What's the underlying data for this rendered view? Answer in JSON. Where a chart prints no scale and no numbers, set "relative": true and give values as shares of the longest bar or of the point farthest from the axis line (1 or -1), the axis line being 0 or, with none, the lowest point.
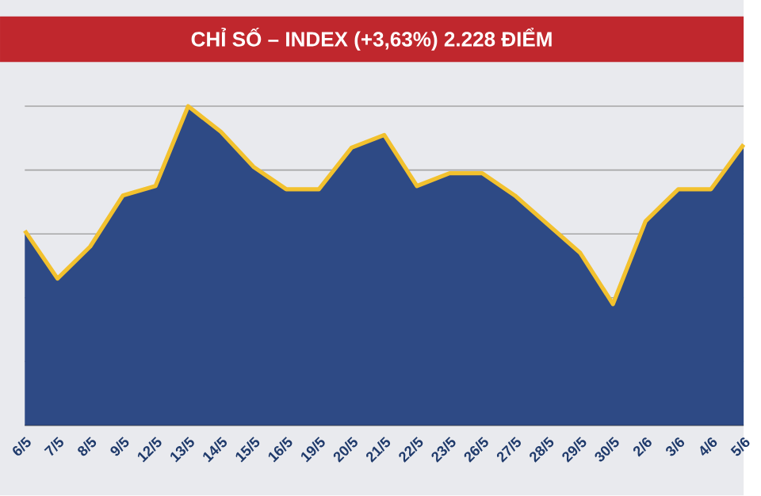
{
  "chart_data": {
    "type": "area",
    "title": "CHỈ SỐ – INDEX (+3,63%) 2.228 ĐIỂM",
    "relative": true,
    "grid": "y",
    "marker": "none",
    "line_style": "solid",
    "categories": [
      "6/5",
      "7/5",
      "8/5",
      "9/5",
      "12/5",
      "13/5",
      "14/5",
      "15/5",
      "16/5",
      "19/5",
      "20/5",
      "21/5",
      "22/5",
      "23/5",
      "26/5",
      "27/5",
      "28/5",
      "29/5",
      "30/5",
      "2/6",
      "3/6",
      "4/6",
      "5/6"
    ],
    "series": [
      {
        "color": "#2e4a85",
        "values": [
          0.61,
          0.46,
          0.56,
          0.72,
          0.75,
          1,
          0.92,
          0.81,
          0.74,
          0.74,
          0.87,
          0.91,
          0.75,
          0.79,
          0.79,
          0.72,
          0.63,
          0.54,
          0.38,
          0.64,
          0.74,
          0.74,
          0.88
        ]
      },
      {
        "type": "line",
        "color": "#f2c12e",
        "values": [
          0.61,
          0.46,
          0.56,
          0.72,
          0.75,
          1,
          0.92,
          0.81,
          0.74,
          0.74,
          0.87,
          0.91,
          0.75,
          0.79,
          0.79,
          0.72,
          0.63,
          0.54,
          0.38,
          0.64,
          0.74,
          0.74,
          0.88
        ]
      }
    ]
  }
}
